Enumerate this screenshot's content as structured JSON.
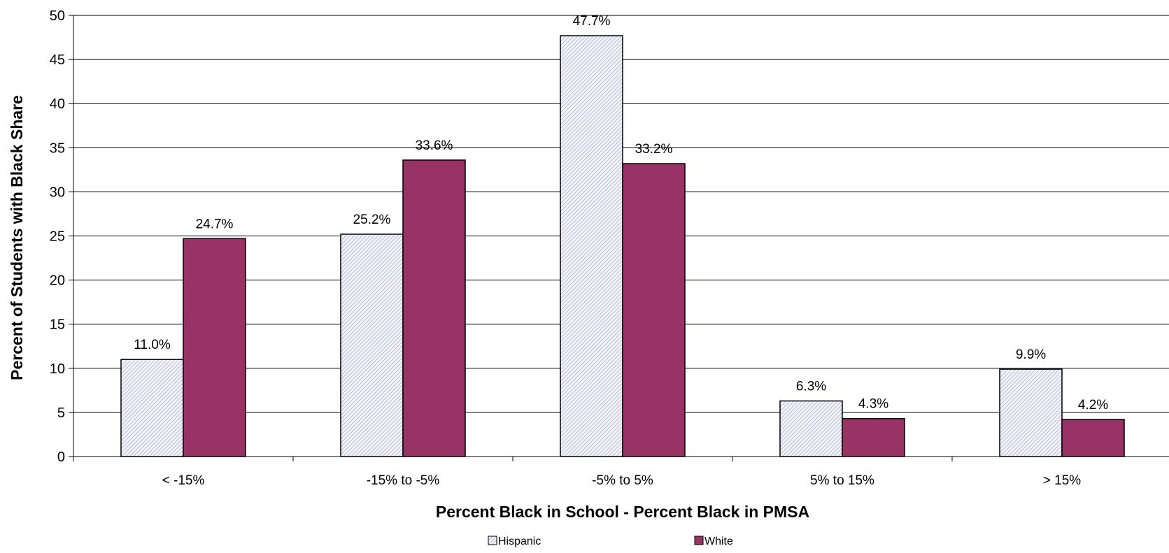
{
  "chart_data": {
    "type": "bar",
    "title": "",
    "xlabel": "Percent Black in School - Percent Black in PMSA",
    "ylabel": "Percent of Students with Black Share",
    "ylim": [
      0,
      50
    ],
    "yticks": [
      "0",
      "5",
      "10",
      "15",
      "20",
      "25",
      "30",
      "35",
      "40",
      "45",
      "50"
    ],
    "categories": [
      "< -15%",
      "-15% to -5%",
      "-5% to 5%",
      "5% to 15%",
      "> 15%"
    ],
    "grid": true,
    "legend_position": "bottom",
    "series": [
      {
        "name": "Hispanic",
        "color": "#E8E8F8",
        "pattern": "diagonal-hatch",
        "values": [
          11.0,
          25.2,
          47.7,
          6.3,
          9.9
        ],
        "labels": [
          "11.0%",
          "25.2%",
          "47.7%",
          "6.3%",
          "9.9%"
        ]
      },
      {
        "name": "White",
        "color": "#993366",
        "pattern": "solid",
        "values": [
          24.7,
          33.6,
          33.2,
          4.3,
          4.2
        ],
        "labels": [
          "24.7%",
          "33.6%",
          "33.2%",
          "4.3%",
          "4.2%"
        ]
      }
    ]
  }
}
